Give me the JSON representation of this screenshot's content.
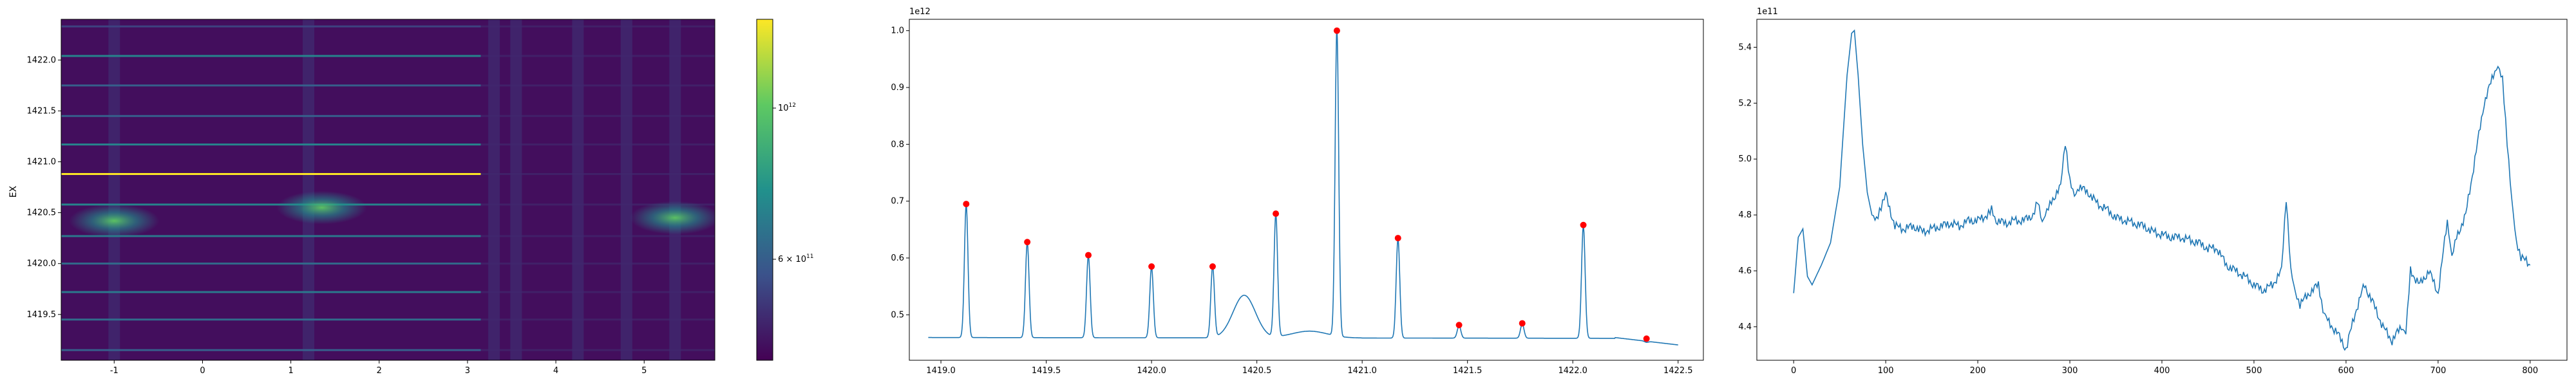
{
  "chart_data": [
    {
      "type": "heatmap",
      "title": "",
      "xlabel": "",
      "ylabel": "EX",
      "xlim": [
        -1.6,
        5.8
      ],
      "ylim": [
        1419.05,
        1422.4
      ],
      "x_ticks": [
        -1,
        0,
        1,
        2,
        3,
        4,
        5
      ],
      "y_ticks": [
        1419.5,
        1420.0,
        1420.5,
        1421.0,
        1421.5,
        1422.0
      ],
      "colormap": "viridis",
      "colorbar_ticks": [
        "10^12",
        "6 × 10^11"
      ],
      "colorbar_label_parts": {
        "mantissa": "6 × 10",
        "exponent": "11",
        "base": "10",
        "exp12": "12"
      },
      "bright_band_y": 1420.88,
      "rows_y": [
        1419.15,
        1419.45,
        1419.72,
        1420.0,
        1420.27,
        1420.58,
        1420.88,
        1421.17,
        1421.45,
        1421.75,
        1422.04,
        1422.33
      ],
      "rows_level": [
        0.3,
        0.35,
        0.4,
        0.35,
        0.4,
        0.45,
        1.0,
        0.45,
        0.3,
        0.3,
        0.45,
        0.2
      ],
      "hotspots": [
        {
          "x": -1.0,
          "y": 1420.42,
          "level": 0.7
        },
        {
          "x": 1.35,
          "y": 1420.55,
          "level": 0.6
        },
        {
          "x": 5.35,
          "y": 1420.45,
          "level": 0.75
        }
      ]
    },
    {
      "type": "line",
      "title": "",
      "xlabel": "",
      "ylabel": "",
      "offset_text": "1e12",
      "xlim": [
        1418.85,
        1422.62
      ],
      "ylim": [
        0.42,
        1.02
      ],
      "x_ticks": [
        "1419.0",
        "1419.5",
        "1420.0",
        "1420.5",
        "1421.0",
        "1421.5",
        "1422.0",
        "1422.5"
      ],
      "y_ticks": [
        "0.5",
        "0.6",
        "0.7",
        "0.8",
        "0.9",
        "1.0"
      ],
      "baseline": 0.46,
      "peaks": [
        {
          "x": 1419.12,
          "y": 0.695
        },
        {
          "x": 1419.41,
          "y": 0.628
        },
        {
          "x": 1419.7,
          "y": 0.605
        },
        {
          "x": 1420.0,
          "y": 0.585
        },
        {
          "x": 1420.29,
          "y": 0.585
        },
        {
          "x": 1420.59,
          "y": 0.678
        },
        {
          "x": 1420.88,
          "y": 1.0
        },
        {
          "x": 1421.17,
          "y": 0.635
        },
        {
          "x": 1421.46,
          "y": 0.482
        },
        {
          "x": 1421.76,
          "y": 0.485
        },
        {
          "x": 1422.05,
          "y": 0.658
        },
        {
          "x": 1422.35,
          "y": 0.458
        }
      ],
      "broad_bump": {
        "x": 1420.44,
        "height": 0.075
      },
      "end_value": 0.447,
      "marker_color": "#ff0000",
      "line_color": "#1f77b4"
    },
    {
      "type": "line",
      "title": "",
      "xlabel": "",
      "ylabel": "",
      "offset_text": "1e11",
      "xlim": [
        -40,
        840
      ],
      "ylim": [
        4.28,
        5.5
      ],
      "x_ticks": [
        "0",
        "100",
        "200",
        "300",
        "400",
        "500",
        "600",
        "700",
        "800"
      ],
      "y_ticks": [
        "4.4",
        "4.6",
        "4.8",
        "5.0",
        "5.2",
        "5.4"
      ],
      "line_color": "#1f77b4",
      "x": [
        0,
        5,
        10,
        15,
        20,
        30,
        40,
        50,
        58,
        63,
        66,
        70,
        75,
        80,
        85,
        90,
        95,
        100,
        110,
        120,
        130,
        140,
        150,
        160,
        170,
        180,
        190,
        200,
        210,
        215,
        220,
        230,
        240,
        250,
        260,
        265,
        270,
        275,
        280,
        290,
        295,
        300,
        305,
        310,
        320,
        330,
        340,
        350,
        360,
        370,
        380,
        390,
        400,
        410,
        420,
        430,
        440,
        450,
        460,
        470,
        480,
        490,
        500,
        510,
        520,
        530,
        535,
        540,
        545,
        550,
        560,
        570,
        575,
        580,
        590,
        600,
        610,
        620,
        630,
        640,
        650,
        660,
        665,
        670,
        680,
        690,
        700,
        710,
        715,
        720,
        730,
        740,
        750,
        760,
        765,
        770,
        775,
        780,
        785,
        790,
        800
      ],
      "values": [
        4.52,
        4.72,
        4.75,
        4.58,
        4.55,
        4.62,
        4.7,
        4.9,
        5.3,
        5.45,
        5.46,
        5.3,
        5.05,
        4.88,
        4.8,
        4.78,
        4.82,
        4.87,
        4.76,
        4.75,
        4.76,
        4.74,
        4.75,
        4.76,
        4.77,
        4.76,
        4.78,
        4.78,
        4.8,
        4.83,
        4.78,
        4.77,
        4.78,
        4.78,
        4.8,
        4.86,
        4.78,
        4.82,
        4.85,
        4.9,
        5.05,
        4.92,
        4.87,
        4.9,
        4.88,
        4.84,
        4.82,
        4.79,
        4.78,
        4.77,
        4.76,
        4.74,
        4.73,
        4.72,
        4.72,
        4.71,
        4.7,
        4.68,
        4.68,
        4.62,
        4.6,
        4.58,
        4.55,
        4.53,
        4.55,
        4.6,
        4.85,
        4.6,
        4.52,
        4.48,
        4.52,
        4.55,
        4.45,
        4.42,
        4.38,
        4.32,
        4.45,
        4.55,
        4.48,
        4.4,
        4.35,
        4.4,
        4.38,
        4.6,
        4.55,
        4.6,
        4.52,
        4.78,
        4.65,
        4.72,
        4.8,
        5.0,
        5.2,
        5.3,
        5.33,
        5.28,
        5.05,
        4.85,
        4.7,
        4.65,
        4.62
      ]
    }
  ]
}
